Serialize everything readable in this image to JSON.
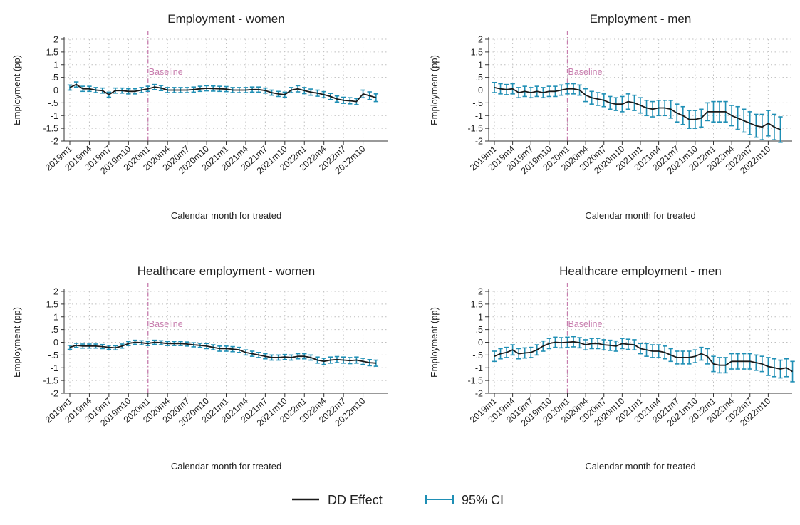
{
  "chart_data": [
    {
      "type": "line",
      "title": "Employment - women",
      "ylabel": "Employment (pp)",
      "xlabel": "Calendar month for treated",
      "ylim": [
        -2,
        2
      ],
      "yticks": [
        "2",
        "1.5",
        "1",
        ".5",
        "0",
        "-.5",
        "-1",
        "-1.5",
        "-2"
      ],
      "xticks": [
        "2019m1",
        "2019m4",
        "2019m7",
        "2019m10",
        "2020m1",
        "2020m4",
        "2020m7",
        "2020m10",
        "2021m1",
        "2021m4",
        "2021m7",
        "2021m10",
        "2022m1",
        "2022m4",
        "2022m7",
        "2022m10"
      ],
      "baseline_label": "Baseline",
      "baseline_month": "2020m1",
      "grid": true,
      "series": [
        {
          "name": "DD Effect",
          "values": [
            0.1,
            0.22,
            0.05,
            0.05,
            0.0,
            -0.02,
            -0.18,
            -0.02,
            -0.02,
            -0.05,
            -0.05,
            0.0,
            0.05,
            0.12,
            0.08,
            0.0,
            0.0,
            0.0,
            0.0,
            0.02,
            0.05,
            0.07,
            0.06,
            0.05,
            0.04,
            0.0,
            0.0,
            0.0,
            0.02,
            0.02,
            -0.02,
            -0.1,
            -0.15,
            -0.18,
            0.0,
            0.05,
            -0.02,
            -0.08,
            -0.12,
            -0.18,
            -0.25,
            -0.35,
            -0.4,
            -0.42,
            -0.45,
            -0.15,
            -0.22,
            -0.3
          ]
        },
        {
          "name": "95% CI",
          "half_width": [
            0.1,
            0.1,
            0.1,
            0.1,
            0.1,
            0.1,
            0.1,
            0.1,
            0.1,
            0.1,
            0.1,
            0.1,
            0.1,
            0.1,
            0.1,
            0.1,
            0.1,
            0.1,
            0.1,
            0.1,
            0.1,
            0.1,
            0.1,
            0.1,
            0.1,
            0.1,
            0.1,
            0.1,
            0.1,
            0.1,
            0.1,
            0.1,
            0.1,
            0.1,
            0.1,
            0.12,
            0.12,
            0.12,
            0.12,
            0.12,
            0.12,
            0.12,
            0.12,
            0.12,
            0.12,
            0.15,
            0.15,
            0.15
          ]
        }
      ]
    },
    {
      "type": "line",
      "title": "Employment - men",
      "ylabel": "Employment (pp)",
      "xlabel": "Calendar month for treated",
      "ylim": [
        -2,
        2
      ],
      "yticks": [
        "2",
        "1.5",
        "1",
        ".5",
        "0",
        "-.5",
        "-1",
        "-1.5",
        "-2"
      ],
      "xticks": [
        "2019m1",
        "2019m4",
        "2019m7",
        "2019m10",
        "2020m1",
        "2020m4",
        "2020m7",
        "2020m10",
        "2021m1",
        "2021m4",
        "2021m7",
        "2021m10",
        "2022m1",
        "2022m4",
        "2022m7",
        "2022m10"
      ],
      "baseline_label": "Baseline",
      "baseline_month": "2020m1",
      "grid": true,
      "series": [
        {
          "name": "DD Effect",
          "values": [
            0.1,
            0.05,
            0.02,
            0.05,
            -0.1,
            -0.05,
            -0.1,
            -0.05,
            -0.1,
            -0.05,
            -0.05,
            0.0,
            0.05,
            0.05,
            0.0,
            -0.2,
            -0.3,
            -0.35,
            -0.4,
            -0.5,
            -0.55,
            -0.55,
            -0.45,
            -0.5,
            -0.6,
            -0.7,
            -0.75,
            -0.7,
            -0.7,
            -0.75,
            -0.9,
            -1.0,
            -1.15,
            -1.15,
            -1.1,
            -0.85,
            -0.85,
            -0.85,
            -0.85,
            -1.0,
            -1.1,
            -1.2,
            -1.3,
            -1.4,
            -1.45,
            -1.3,
            -1.45,
            -1.55
          ]
        },
        {
          "name": "95% CI",
          "half_width": [
            0.2,
            0.2,
            0.2,
            0.2,
            0.2,
            0.2,
            0.2,
            0.2,
            0.2,
            0.2,
            0.2,
            0.2,
            0.2,
            0.2,
            0.2,
            0.25,
            0.25,
            0.25,
            0.25,
            0.25,
            0.25,
            0.3,
            0.3,
            0.3,
            0.3,
            0.3,
            0.3,
            0.3,
            0.3,
            0.35,
            0.35,
            0.35,
            0.35,
            0.35,
            0.35,
            0.35,
            0.4,
            0.4,
            0.4,
            0.4,
            0.45,
            0.45,
            0.45,
            0.45,
            0.5,
            0.5,
            0.5,
            0.5
          ]
        }
      ]
    },
    {
      "type": "line",
      "title": "Healthcare employment - women",
      "ylabel": "Employment (pp)",
      "xlabel": "Calendar month for treated",
      "ylim": [
        -2,
        2
      ],
      "yticks": [
        "2",
        "1.5",
        "1",
        ".5",
        "0",
        "-.5",
        "-1",
        "-1.5",
        "-2"
      ],
      "xticks": [
        "2019m1",
        "2019m4",
        "2019m7",
        "2019m10",
        "2020m1",
        "2020m4",
        "2020m7",
        "2020m10",
        "2021m1",
        "2021m4",
        "2021m7",
        "2021m10",
        "2022m1",
        "2022m4",
        "2022m7",
        "2022m10"
      ],
      "baseline_label": "Baseline",
      "baseline_month": "2020m1",
      "grid": true,
      "series": [
        {
          "name": "DD Effect",
          "values": [
            -0.2,
            -0.12,
            -0.15,
            -0.15,
            -0.15,
            -0.17,
            -0.2,
            -0.22,
            -0.15,
            -0.05,
            0.0,
            -0.02,
            -0.05,
            0.0,
            -0.02,
            -0.05,
            -0.05,
            -0.05,
            -0.07,
            -0.1,
            -0.12,
            -0.15,
            -0.2,
            -0.25,
            -0.25,
            -0.27,
            -0.3,
            -0.4,
            -0.45,
            -0.5,
            -0.55,
            -0.6,
            -0.6,
            -0.58,
            -0.6,
            -0.55,
            -0.55,
            -0.6,
            -0.7,
            -0.75,
            -0.7,
            -0.68,
            -0.7,
            -0.72,
            -0.7,
            -0.75,
            -0.8,
            -0.82
          ]
        },
        {
          "name": "95% CI",
          "half_width": [
            0.08,
            0.08,
            0.08,
            0.08,
            0.08,
            0.08,
            0.08,
            0.08,
            0.08,
            0.08,
            0.08,
            0.08,
            0.08,
            0.08,
            0.08,
            0.08,
            0.08,
            0.08,
            0.08,
            0.08,
            0.08,
            0.1,
            0.1,
            0.1,
            0.1,
            0.1,
            0.1,
            0.1,
            0.1,
            0.1,
            0.1,
            0.1,
            0.1,
            0.1,
            0.1,
            0.1,
            0.1,
            0.1,
            0.12,
            0.12,
            0.12,
            0.12,
            0.12,
            0.12,
            0.12,
            0.12,
            0.12,
            0.12
          ]
        }
      ]
    },
    {
      "type": "line",
      "title": "Healthcare employment - men",
      "ylabel": "Employment (pp)",
      "xlabel": "Calendar month for treated",
      "ylim": [
        -2,
        2
      ],
      "yticks": [
        "2",
        "1.5",
        "1",
        ".5",
        "0",
        "-.5",
        "-1",
        "-1.5",
        "-2"
      ],
      "xticks": [
        "2019m1",
        "2019m4",
        "2019m7",
        "2019m10",
        "2020m1",
        "2020m4",
        "2020m7",
        "2020m10",
        "2021m1",
        "2021m4",
        "2021m7",
        "2021m10",
        "2022m1",
        "2022m4",
        "2022m7",
        "2022m10"
      ],
      "baseline_label": "Baseline",
      "baseline_month": "2020m1",
      "grid": true,
      "series": [
        {
          "name": "DD Effect",
          "values": [
            -0.55,
            -0.45,
            -0.4,
            -0.3,
            -0.45,
            -0.42,
            -0.4,
            -0.3,
            -0.15,
            -0.05,
            0.0,
            -0.02,
            0.0,
            0.02,
            -0.02,
            -0.1,
            -0.05,
            -0.05,
            -0.1,
            -0.12,
            -0.15,
            -0.05,
            -0.08,
            -0.1,
            -0.25,
            -0.3,
            -0.35,
            -0.35,
            -0.4,
            -0.5,
            -0.6,
            -0.6,
            -0.6,
            -0.55,
            -0.45,
            -0.55,
            -0.85,
            -0.9,
            -0.9,
            -0.75,
            -0.75,
            -0.75,
            -0.75,
            -0.8,
            -0.85,
            -0.95,
            -1.0,
            -1.05,
            -1.0,
            -1.15
          ]
        },
        {
          "name": "95% CI",
          "half_width": [
            0.2,
            0.2,
            0.2,
            0.2,
            0.2,
            0.2,
            0.2,
            0.2,
            0.2,
            0.2,
            0.2,
            0.2,
            0.2,
            0.2,
            0.2,
            0.2,
            0.2,
            0.2,
            0.2,
            0.2,
            0.2,
            0.2,
            0.2,
            0.2,
            0.2,
            0.25,
            0.25,
            0.25,
            0.25,
            0.25,
            0.25,
            0.25,
            0.25,
            0.25,
            0.25,
            0.3,
            0.3,
            0.3,
            0.3,
            0.3,
            0.3,
            0.3,
            0.3,
            0.3,
            0.3,
            0.35,
            0.35,
            0.35,
            0.35,
            0.4
          ]
        }
      ]
    }
  ],
  "legend": {
    "items": [
      {
        "label": "DD Effect",
        "color": "#1a1a1a"
      },
      {
        "label": "95% CI",
        "color": "#1f8fb5"
      }
    ]
  },
  "colors": {
    "effect": "#1a1a1a",
    "ci": "#1f8fb5",
    "baseline": "#c77cad",
    "grid": "#bfbfbf"
  }
}
